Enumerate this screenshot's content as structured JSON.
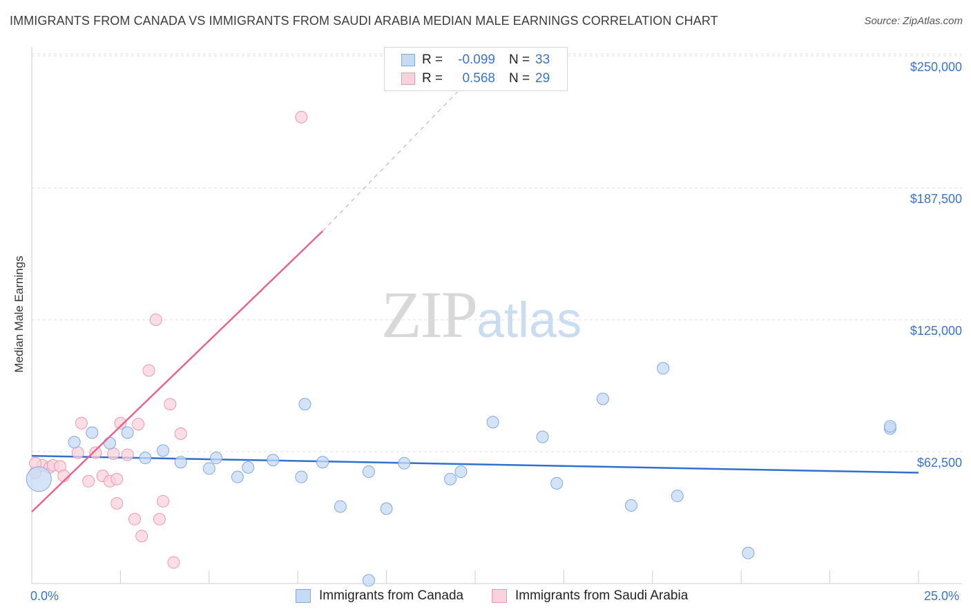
{
  "title": "IMMIGRANTS FROM CANADA VS IMMIGRANTS FROM SAUDI ARABIA MEDIAN MALE EARNINGS CORRELATION CHART",
  "source": "Source: ZipAtlas.com",
  "watermark": {
    "zip": "ZIP",
    "atlas": "atlas"
  },
  "legend": {
    "rows": [
      {
        "r_label": "R =",
        "r_value": "-0.099",
        "n_label": "N =",
        "n_value": "33"
      },
      {
        "r_label": "R =",
        "r_value": "0.568",
        "n_label": "N =",
        "n_value": "29"
      }
    ]
  },
  "colors": {
    "canada_fill": "#c5daf5",
    "canada_stroke": "#7fa9dd",
    "canada_line": "#2e6fcf",
    "saudi_fill": "#f9d2dd",
    "saudi_stroke": "#e99ab3",
    "saudi_line": "#e8648c",
    "grid": "#dddddd",
    "axis_label": "#3a74c8"
  },
  "chart_data": {
    "type": "scatter",
    "title": "IMMIGRANTS FROM CANADA VS IMMIGRANTS FROM SAUDI ARABIA MEDIAN MALE EARNINGS CORRELATION CHART",
    "xlabel": "",
    "ylabel": "Median Male Earnings",
    "xlim": [
      0,
      25
    ],
    "ylim": [
      0,
      255000
    ],
    "x_tick_labels": [
      "0.0%",
      "25.0%"
    ],
    "y_ticks": [
      62500,
      125000,
      187500,
      250000
    ],
    "y_tick_labels": [
      "$62,500",
      "$125,000",
      "$187,500",
      "$250,000"
    ],
    "series": [
      {
        "name": "Immigrants from Canada",
        "r": -0.099,
        "n": 33,
        "points": [
          [
            0.2,
            49500
          ],
          [
            1.2,
            67000
          ],
          [
            1.7,
            71500
          ],
          [
            2.2,
            66500
          ],
          [
            2.7,
            71500
          ],
          [
            3.2,
            59500
          ],
          [
            3.7,
            63000
          ],
          [
            4.2,
            57500
          ],
          [
            5.0,
            54500
          ],
          [
            5.2,
            59500
          ],
          [
            5.8,
            50500
          ],
          [
            6.1,
            55000
          ],
          [
            6.8,
            58500
          ],
          [
            7.6,
            50500
          ],
          [
            7.7,
            85000
          ],
          [
            8.2,
            57500
          ],
          [
            8.7,
            36500
          ],
          [
            9.5,
            1500
          ],
          [
            9.5,
            53000
          ],
          [
            10.0,
            35500
          ],
          [
            10.5,
            57000
          ],
          [
            11.8,
            49500
          ],
          [
            12.1,
            53000
          ],
          [
            13.0,
            76500
          ],
          [
            14.4,
            69500
          ],
          [
            14.8,
            47500
          ],
          [
            16.1,
            87500
          ],
          [
            16.9,
            37000
          ],
          [
            17.8,
            102000
          ],
          [
            18.2,
            41500
          ],
          [
            20.2,
            14500
          ],
          [
            24.2,
            73500
          ],
          [
            24.2,
            74500
          ]
        ],
        "trend": {
          "x": [
            0,
            25
          ],
          "y": [
            60500,
            52500
          ]
        }
      },
      {
        "name": "Immigrants from Saudi Arabia",
        "r": 0.568,
        "n": 29,
        "points": [
          [
            0.1,
            52500
          ],
          [
            0.3,
            56000
          ],
          [
            0.5,
            55000
          ],
          [
            0.6,
            56000
          ],
          [
            0.8,
            55500
          ],
          [
            0.9,
            51000
          ],
          [
            1.3,
            62000
          ],
          [
            1.4,
            76000
          ],
          [
            1.6,
            48500
          ],
          [
            1.8,
            62000
          ],
          [
            2.0,
            51000
          ],
          [
            2.2,
            48500
          ],
          [
            2.3,
            61500
          ],
          [
            2.4,
            49500
          ],
          [
            2.4,
            38000
          ],
          [
            2.5,
            76000
          ],
          [
            2.7,
            61000
          ],
          [
            2.9,
            30500
          ],
          [
            3.0,
            75500
          ],
          [
            3.1,
            22500
          ],
          [
            3.3,
            101000
          ],
          [
            3.5,
            125000
          ],
          [
            3.6,
            30500
          ],
          [
            3.7,
            39000
          ],
          [
            3.9,
            85000
          ],
          [
            4.0,
            10000
          ],
          [
            4.2,
            71000
          ],
          [
            7.6,
            221000
          ],
          [
            0.1,
            57000
          ]
        ],
        "trend": {
          "x": [
            0,
            8.2
          ],
          "y": [
            34000,
            167000
          ],
          "dashed_to": {
            "x": 12.0,
            "y": 233000
          }
        }
      }
    ]
  },
  "bottom_legend": [
    {
      "label": "Immigrants from Canada"
    },
    {
      "label": "Immigrants from Saudi Arabia"
    }
  ]
}
